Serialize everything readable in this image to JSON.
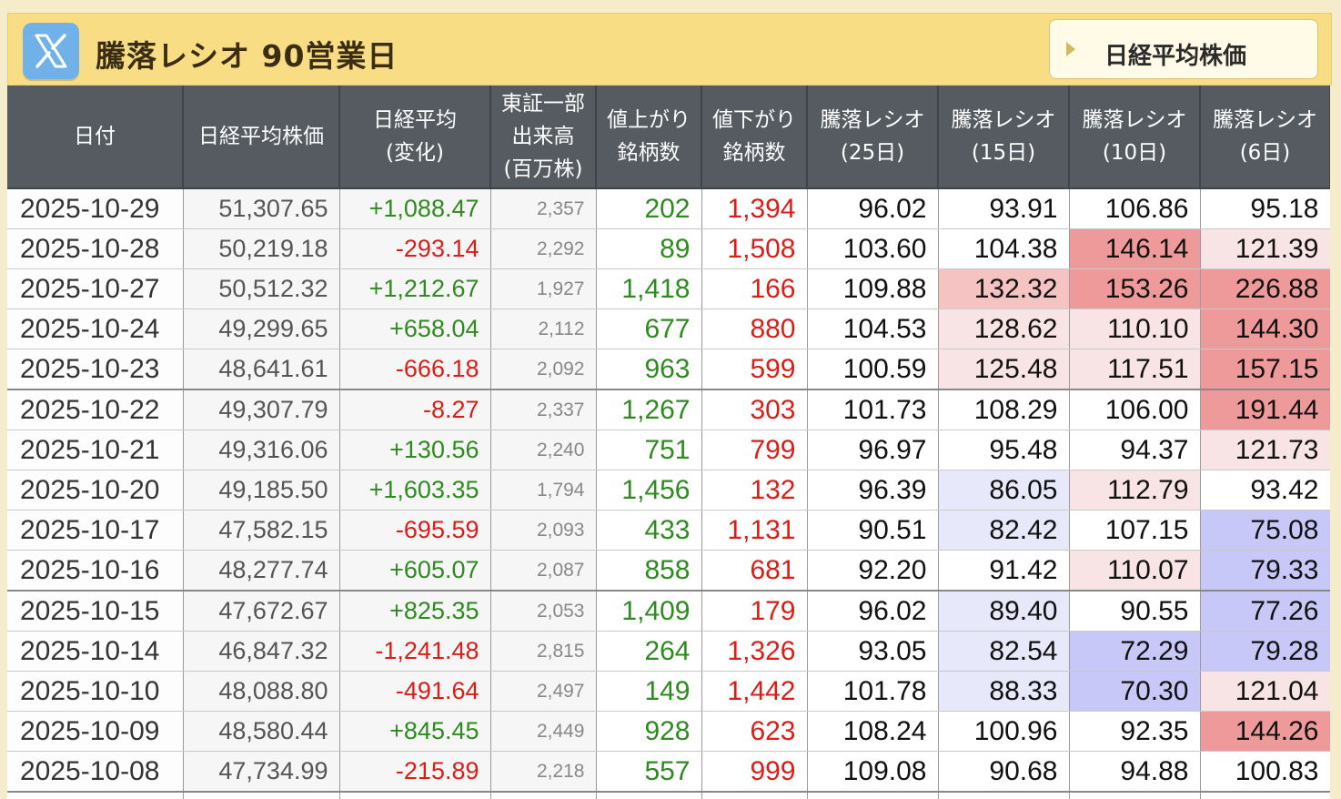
{
  "header": {
    "title": "騰落レシオ 90営業日",
    "nav_button_label": "日経平均株価",
    "x_icon": "x-logo-icon"
  },
  "colors": {
    "title_bar": "#f8dd85",
    "table_header": "#555b61",
    "up": "#2e8b1f",
    "down": "#d91e18",
    "heat_high_strong": "#ef9a9a",
    "heat_high_mid": "#f6c3c3",
    "heat_high_light": "#f8e4e4",
    "heat_low_light": "#e8e8fb",
    "heat_low_strong": "#c8c8f8"
  },
  "table": {
    "columns": [
      [
        "日付"
      ],
      [
        "日経平均株価"
      ],
      [
        "日経平均",
        "(変化)"
      ],
      [
        "東証一部",
        "出来高",
        "(百万株)"
      ],
      [
        "値上がり",
        "銘柄数"
      ],
      [
        "値下がり",
        "銘柄数"
      ],
      [
        "騰落レシオ",
        "(25日)"
      ],
      [
        "騰落レシオ",
        "(15日)"
      ],
      [
        "騰落レシオ",
        "(10日)"
      ],
      [
        "騰落レシオ",
        "(6日)"
      ]
    ],
    "rows": [
      {
        "date": "2025-10-29",
        "nikkei": "51,307.65",
        "change": "+1,088.47",
        "volume": "2,357",
        "advances": "202",
        "declines": "1,394",
        "r25": "96.02",
        "r15": "93.91",
        "r10": "106.86",
        "r6": "95.18",
        "h15": "",
        "h10": "",
        "h6": "",
        "week_end": false
      },
      {
        "date": "2025-10-28",
        "nikkei": "50,219.18",
        "change": "-293.14",
        "volume": "2,292",
        "advances": "89",
        "declines": "1,508",
        "r25": "103.60",
        "r15": "104.38",
        "r10": "146.14",
        "r6": "121.39",
        "h15": "",
        "h10": "hs",
        "h6": "hl",
        "week_end": false
      },
      {
        "date": "2025-10-27",
        "nikkei": "50,512.32",
        "change": "+1,212.67",
        "volume": "1,927",
        "advances": "1,418",
        "declines": "166",
        "r25": "109.88",
        "r15": "132.32",
        "r10": "153.26",
        "r6": "226.88",
        "h15": "hm",
        "h10": "hs",
        "h6": "hs",
        "week_end": false
      },
      {
        "date": "2025-10-24",
        "nikkei": "49,299.65",
        "change": "+658.04",
        "volume": "2,112",
        "advances": "677",
        "declines": "880",
        "r25": "104.53",
        "r15": "128.62",
        "r10": "110.10",
        "r6": "144.30",
        "h15": "hl",
        "h10": "hxl",
        "h6": "hs",
        "week_end": false
      },
      {
        "date": "2025-10-23",
        "nikkei": "48,641.61",
        "change": "-666.18",
        "volume": "2,092",
        "advances": "963",
        "declines": "599",
        "r25": "100.59",
        "r15": "125.48",
        "r10": "117.51",
        "r6": "157.15",
        "h15": "hl",
        "h10": "hxl",
        "h6": "hs",
        "week_end": true
      },
      {
        "date": "2025-10-22",
        "nikkei": "49,307.79",
        "change": "-8.27",
        "volume": "2,337",
        "advances": "1,267",
        "declines": "303",
        "r25": "101.73",
        "r15": "108.29",
        "r10": "106.00",
        "r6": "191.44",
        "h15": "",
        "h10": "",
        "h6": "hs",
        "week_end": false
      },
      {
        "date": "2025-10-21",
        "nikkei": "49,316.06",
        "change": "+130.56",
        "volume": "2,240",
        "advances": "751",
        "declines": "799",
        "r25": "96.97",
        "r15": "95.48",
        "r10": "94.37",
        "r6": "121.73",
        "h15": "",
        "h10": "",
        "h6": "hl",
        "week_end": false
      },
      {
        "date": "2025-10-20",
        "nikkei": "49,185.50",
        "change": "+1,603.35",
        "volume": "1,794",
        "advances": "1,456",
        "declines": "132",
        "r25": "96.39",
        "r15": "86.05",
        "r10": "112.79",
        "r6": "93.42",
        "h15": "bl",
        "h10": "hxl",
        "h6": "",
        "week_end": false
      },
      {
        "date": "2025-10-17",
        "nikkei": "47,582.15",
        "change": "-695.59",
        "volume": "2,093",
        "advances": "433",
        "declines": "1,131",
        "r25": "90.51",
        "r15": "82.42",
        "r10": "107.15",
        "r6": "75.08",
        "h15": "bl",
        "h10": "",
        "h6": "bs",
        "week_end": false
      },
      {
        "date": "2025-10-16",
        "nikkei": "48,277.74",
        "change": "+605.07",
        "volume": "2,087",
        "advances": "858",
        "declines": "681",
        "r25": "92.20",
        "r15": "91.42",
        "r10": "110.07",
        "r6": "79.33",
        "h15": "",
        "h10": "hxl",
        "h6": "bs",
        "week_end": true
      },
      {
        "date": "2025-10-15",
        "nikkei": "47,672.67",
        "change": "+825.35",
        "volume": "2,053",
        "advances": "1,409",
        "declines": "179",
        "r25": "96.02",
        "r15": "89.40",
        "r10": "90.55",
        "r6": "77.26",
        "h15": "bl",
        "h10": "",
        "h6": "bs",
        "week_end": false
      },
      {
        "date": "2025-10-14",
        "nikkei": "46,847.32",
        "change": "-1,241.48",
        "volume": "2,815",
        "advances": "264",
        "declines": "1,326",
        "r25": "93.05",
        "r15": "82.54",
        "r10": "72.29",
        "r6": "79.28",
        "h15": "bl",
        "h10": "bs",
        "h6": "bs",
        "week_end": false
      },
      {
        "date": "2025-10-10",
        "nikkei": "48,088.80",
        "change": "-491.64",
        "volume": "2,497",
        "advances": "149",
        "declines": "1,442",
        "r25": "101.78",
        "r15": "88.33",
        "r10": "70.30",
        "r6": "121.04",
        "h15": "bl",
        "h10": "bs",
        "h6": "hl",
        "week_end": false
      },
      {
        "date": "2025-10-09",
        "nikkei": "48,580.44",
        "change": "+845.45",
        "volume": "2,449",
        "advances": "928",
        "declines": "623",
        "r25": "108.24",
        "r15": "100.96",
        "r10": "92.35",
        "r6": "144.26",
        "h15": "",
        "h10": "",
        "h6": "hs",
        "week_end": false
      },
      {
        "date": "2025-10-08",
        "nikkei": "47,734.99",
        "change": "-215.89",
        "volume": "2,218",
        "advances": "557",
        "declines": "999",
        "r25": "109.08",
        "r15": "90.68",
        "r10": "94.88",
        "r6": "100.83",
        "h15": "",
        "h10": "",
        "h6": "",
        "week_end": true
      }
    ]
  }
}
